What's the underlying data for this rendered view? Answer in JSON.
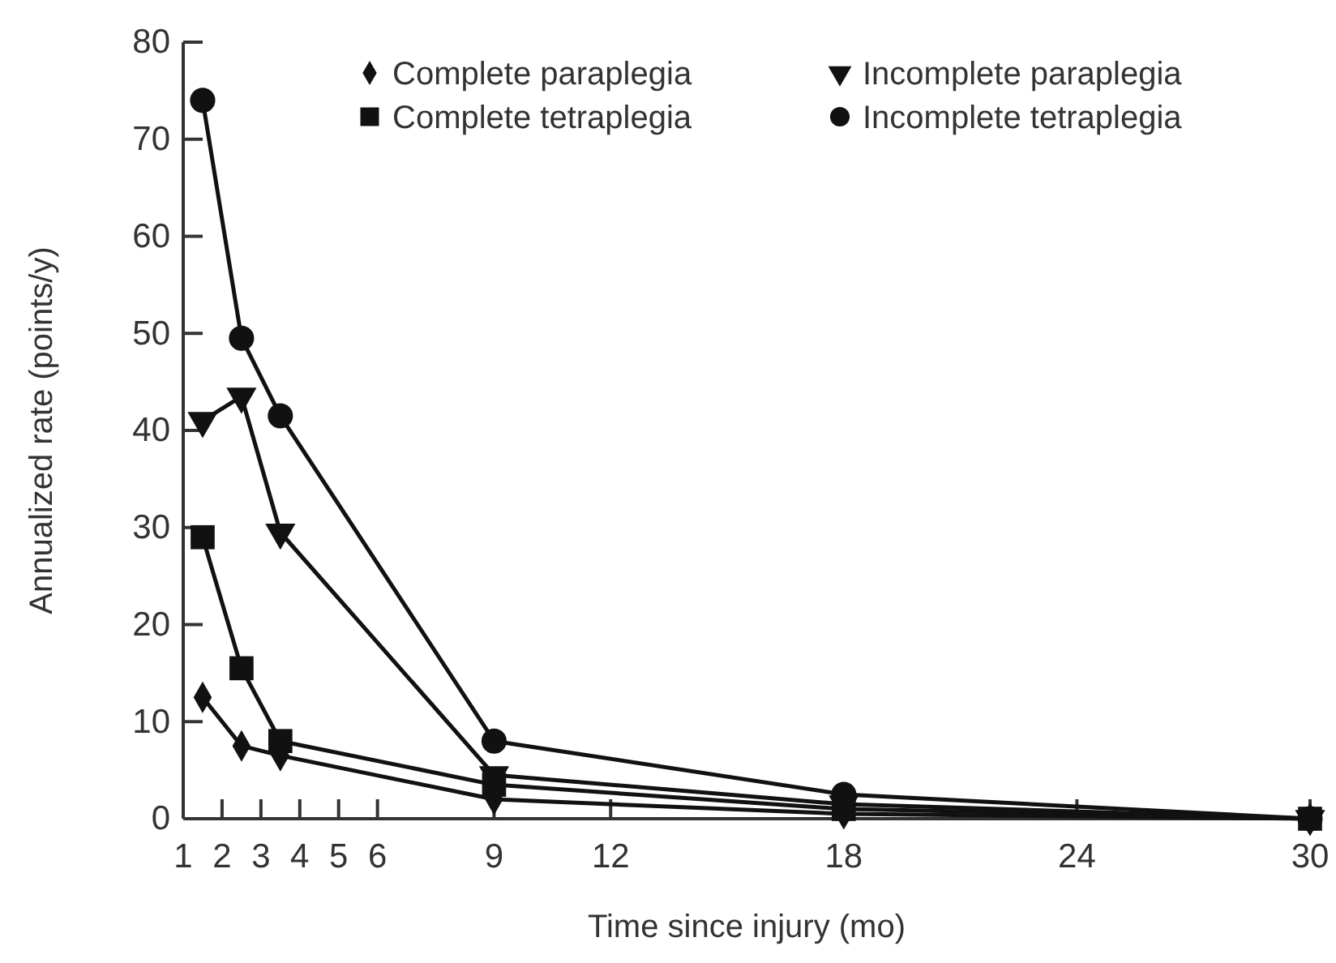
{
  "chart_data": {
    "type": "line",
    "xlabel": "Time since injury (mo)",
    "ylabel": "Annualized rate (points/y)",
    "xlim": [
      1,
      30
    ],
    "xticks": [
      1,
      2,
      3,
      4,
      5,
      6,
      9,
      12,
      18,
      24,
      30
    ],
    "ylim": [
      0,
      80
    ],
    "yticks": [
      0,
      10,
      20,
      30,
      40,
      50,
      60,
      70,
      80
    ],
    "grid": false,
    "legend": "top right",
    "line_style": "solid",
    "series": [
      {
        "name": "Complete paraplegia",
        "color": "#111111",
        "marker": "diamond",
        "x": [
          1.5,
          2.5,
          3.5,
          9,
          18,
          30
        ],
        "values": [
          12.5,
          7.5,
          6.5,
          2,
          0.5,
          0
        ]
      },
      {
        "name": "Incomplete paraplegia",
        "color": "#111111",
        "marker": "triangle",
        "x": [
          1.5,
          2.5,
          3.5,
          9,
          18,
          30
        ],
        "values": [
          41,
          43.5,
          29.5,
          4.5,
          1.5,
          0
        ]
      },
      {
        "name": "Complete tetraplegia",
        "color": "#111111",
        "marker": "square",
        "x": [
          1.5,
          2.5,
          3.5,
          9,
          18,
          30
        ],
        "values": [
          29,
          15.5,
          8,
          3.5,
          1,
          0
        ]
      },
      {
        "name": "Incomplete tetraplegia",
        "color": "#111111",
        "marker": "circle",
        "x": [
          1.5,
          2.5,
          3.5,
          9,
          18,
          30
        ],
        "values": [
          74,
          49.5,
          41.5,
          8,
          2.5,
          0
        ]
      }
    ]
  }
}
